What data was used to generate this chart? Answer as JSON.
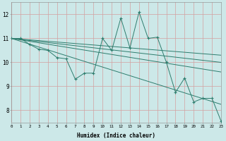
{
  "xlabel": "Humidex (Indice chaleur)",
  "bg_color": "#cce8e8",
  "grid_color": "#d4a0a0",
  "line_color": "#2e7d6e",
  "xlim": [
    0,
    23
  ],
  "ylim": [
    7.5,
    12.5
  ],
  "xticks": [
    0,
    1,
    2,
    3,
    4,
    5,
    6,
    7,
    8,
    9,
    10,
    11,
    12,
    13,
    14,
    15,
    16,
    17,
    18,
    19,
    20,
    21,
    22,
    23
  ],
  "yticks": [
    8,
    9,
    10,
    11,
    12
  ],
  "series1_x": [
    0,
    1,
    2,
    3,
    4,
    5,
    6,
    7,
    8,
    9,
    10,
    11,
    12,
    13,
    14,
    15,
    16,
    17,
    18,
    19,
    20,
    21,
    22,
    23
  ],
  "series1_y": [
    11.0,
    11.0,
    10.75,
    10.55,
    10.5,
    10.2,
    10.15,
    9.3,
    9.55,
    9.55,
    11.0,
    10.5,
    11.85,
    10.6,
    12.1,
    11.0,
    11.05,
    10.0,
    8.75,
    9.35,
    8.35,
    8.5,
    8.5,
    7.55
  ],
  "trend_lines": [
    {
      "x0": 0,
      "y0": 11.0,
      "x1": 23,
      "y1": 10.3
    },
    {
      "x0": 0,
      "y0": 11.0,
      "x1": 23,
      "y1": 10.0
    },
    {
      "x0": 0,
      "y0": 11.0,
      "x1": 23,
      "y1": 9.6
    },
    {
      "x0": 0,
      "y0": 11.0,
      "x1": 23,
      "y1": 8.25
    }
  ]
}
